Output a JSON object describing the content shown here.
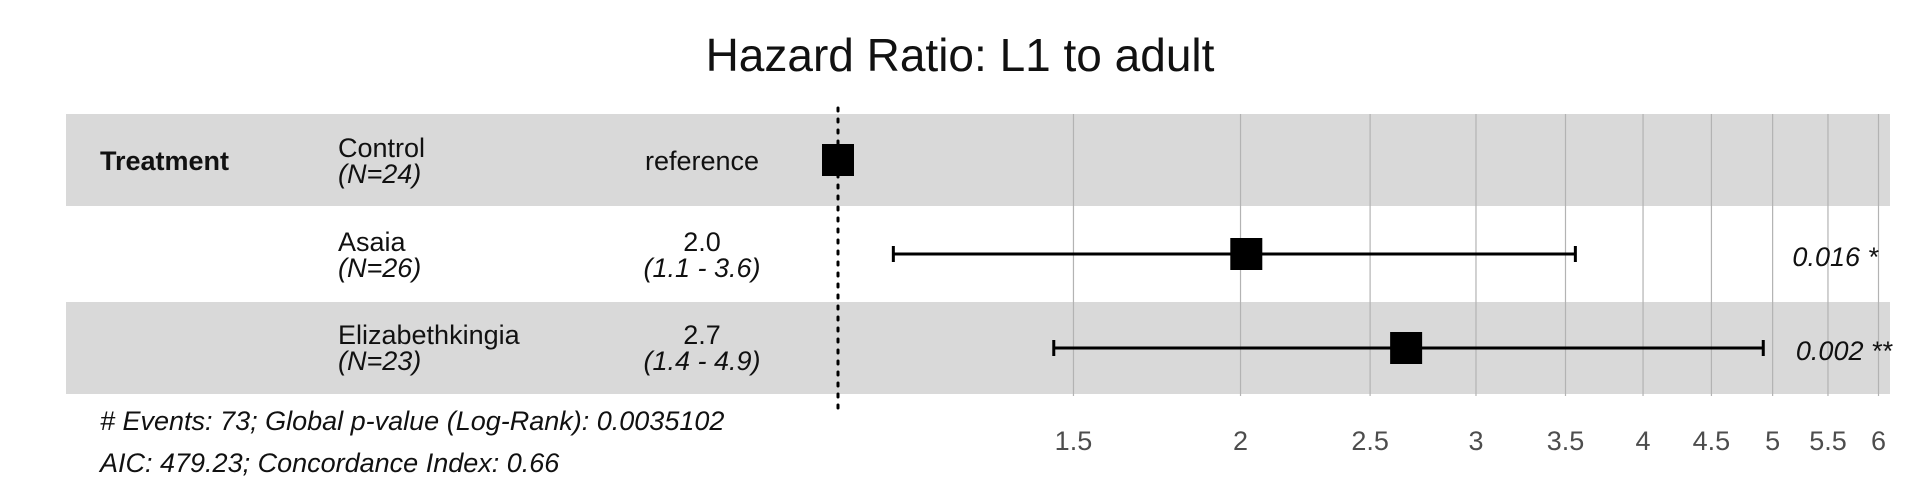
{
  "chart_data": {
    "type": "forest",
    "title": "Hazard Ratio: L1 to adult",
    "x_scale": "log",
    "xlim": [
      1.0,
      6.12
    ],
    "reference_line": 1,
    "xticks": [
      "1.5",
      "2",
      "2.5",
      "3",
      "3.5",
      "4",
      "4.5",
      "5",
      "5.5",
      "6"
    ],
    "xtick_values": [
      1.5,
      2,
      2.5,
      3,
      3.5,
      4,
      4.5,
      5,
      5.5,
      6
    ],
    "variable": "Treatment",
    "rows": [
      {
        "level": "Control",
        "n": "(N=24)",
        "estimate_text": "reference",
        "ci_text": "",
        "hr": 1.0,
        "lo": null,
        "hi": null,
        "p_text": "",
        "shaded": true
      },
      {
        "level": "Asaia",
        "n": "(N=26)",
        "estimate_text": "2.0",
        "ci_text": "(1.1 - 3.6)",
        "hr": 2.02,
        "lo": 1.1,
        "hi": 3.56,
        "p_text": "0.016 *",
        "shaded": false
      },
      {
        "level": "Elizabethkingia",
        "n": "(N=23)",
        "estimate_text": "2.7",
        "ci_text": "(1.4 - 4.9)",
        "hr": 2.66,
        "lo": 1.45,
        "hi": 4.92,
        "p_text": "0.002 **",
        "shaded": true
      }
    ],
    "footnote_1": "# Events: 73; Global p-value (Log-Rank): 0.0035102",
    "footnote_2": "AIC: 479.23; Concordance Index: 0.66",
    "grid": "vertical"
  }
}
